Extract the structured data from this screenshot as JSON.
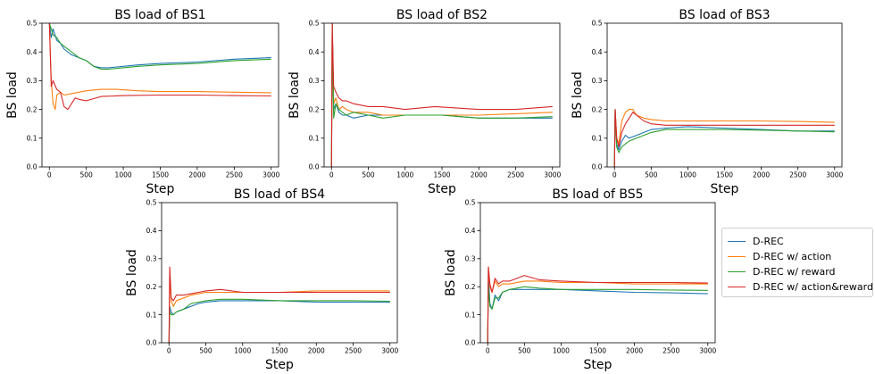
{
  "colors": {
    "D-REC": "#1f77b4",
    "D-REC w/ action": "#ff7f0e",
    "D-REC w/ reward": "#2ca02c",
    "D-REC w/ action&reward": "#d62728"
  },
  "legend": {
    "placement": "right",
    "items": [
      {
        "label": "D-REC",
        "color": "#1f77b4"
      },
      {
        "label": "D-REC w/ action",
        "color": "#ff7f0e"
      },
      {
        "label": "D-REC w/ reward",
        "color": "#2ca02c"
      },
      {
        "label": "D-REC w/ action&reward",
        "color": "#d62728"
      }
    ]
  },
  "chart_data": [
    {
      "type": "line",
      "title": "BS load of BS1",
      "xlabel": "Step",
      "ylabel": "BS load",
      "xlim": [
        -100,
        3100
      ],
      "ylim": [
        0,
        0.5
      ],
      "xticks": [
        0,
        500,
        1000,
        1500,
        2000,
        2500,
        3000
      ],
      "yticks": [
        0.0,
        0.1,
        0.2,
        0.3,
        0.4,
        0.5
      ],
      "grid": false,
      "series": [
        {
          "name": "D-REC",
          "x": [
            0,
            25,
            50,
            100,
            150,
            200,
            300,
            400,
            500,
            600,
            700,
            800,
            1000,
            1200,
            1500,
            2000,
            2500,
            3000
          ],
          "y": [
            0.5,
            0.45,
            0.48,
            0.44,
            0.43,
            0.41,
            0.39,
            0.38,
            0.37,
            0.35,
            0.345,
            0.345,
            0.35,
            0.355,
            0.36,
            0.365,
            0.375,
            0.38
          ]
        },
        {
          "name": "D-REC w/ action",
          "x": [
            0,
            25,
            50,
            80,
            100,
            150,
            200,
            300,
            400,
            500,
            700,
            900,
            1200,
            1500,
            2000,
            2500,
            3000
          ],
          "y": [
            0.5,
            0.3,
            0.22,
            0.2,
            0.25,
            0.26,
            0.25,
            0.255,
            0.26,
            0.265,
            0.27,
            0.27,
            0.265,
            0.262,
            0.262,
            0.26,
            0.258
          ]
        },
        {
          "name": "D-REC w/ reward",
          "x": [
            0,
            25,
            50,
            100,
            150,
            200,
            300,
            400,
            500,
            600,
            700,
            800,
            1000,
            1200,
            1500,
            2000,
            2500,
            3000
          ],
          "y": [
            0.5,
            0.48,
            0.46,
            0.45,
            0.43,
            0.42,
            0.4,
            0.38,
            0.37,
            0.35,
            0.34,
            0.34,
            0.345,
            0.35,
            0.355,
            0.36,
            0.37,
            0.375
          ]
        },
        {
          "name": "D-REC w/ action&reward",
          "x": [
            0,
            25,
            50,
            100,
            150,
            200,
            250,
            300,
            350,
            400,
            500,
            700,
            1000,
            1500,
            2000,
            2500,
            3000
          ],
          "y": [
            0.5,
            0.28,
            0.3,
            0.27,
            0.26,
            0.21,
            0.2,
            0.22,
            0.24,
            0.235,
            0.23,
            0.245,
            0.248,
            0.25,
            0.25,
            0.248,
            0.247
          ]
        }
      ]
    },
    {
      "type": "line",
      "title": "BS load of BS2",
      "xlabel": "Step",
      "ylabel": "BS load",
      "xlim": [
        -100,
        3100
      ],
      "ylim": [
        0,
        0.5
      ],
      "xticks": [
        0,
        500,
        1000,
        1500,
        2000,
        2500,
        3000
      ],
      "yticks": [
        0.0,
        0.1,
        0.2,
        0.3,
        0.4,
        0.5
      ],
      "grid": false,
      "series": [
        {
          "name": "D-REC",
          "x": [
            0,
            10,
            30,
            60,
            100,
            150,
            200,
            300,
            500,
            700,
            1000,
            1500,
            2000,
            2500,
            3000
          ],
          "y": [
            0,
            0.5,
            0.2,
            0.22,
            0.19,
            0.18,
            0.18,
            0.17,
            0.18,
            0.18,
            0.18,
            0.18,
            0.17,
            0.17,
            0.17
          ]
        },
        {
          "name": "D-REC w/ action",
          "x": [
            0,
            10,
            30,
            60,
            100,
            150,
            200,
            300,
            500,
            700,
            1000,
            1500,
            2000,
            2500,
            3000
          ],
          "y": [
            0,
            0.5,
            0.22,
            0.24,
            0.2,
            0.21,
            0.2,
            0.19,
            0.19,
            0.18,
            0.18,
            0.18,
            0.18,
            0.185,
            0.19
          ]
        },
        {
          "name": "D-REC w/ reward",
          "x": [
            0,
            10,
            30,
            60,
            100,
            150,
            200,
            300,
            500,
            700,
            1000,
            1500,
            2000,
            2500,
            3000
          ],
          "y": [
            0,
            0.5,
            0.17,
            0.22,
            0.2,
            0.19,
            0.18,
            0.19,
            0.18,
            0.17,
            0.18,
            0.18,
            0.17,
            0.17,
            0.175
          ]
        },
        {
          "name": "D-REC w/ action&reward",
          "x": [
            0,
            10,
            30,
            60,
            100,
            150,
            200,
            300,
            500,
            700,
            1000,
            1400,
            2000,
            2500,
            3000
          ],
          "y": [
            0,
            0.5,
            0.28,
            0.26,
            0.24,
            0.23,
            0.23,
            0.22,
            0.21,
            0.21,
            0.2,
            0.21,
            0.2,
            0.2,
            0.21
          ]
        }
      ]
    },
    {
      "type": "line",
      "title": "BS load of BS3",
      "xlabel": "Step",
      "ylabel": "BS load",
      "xlim": [
        -100,
        3100
      ],
      "ylim": [
        0,
        0.5
      ],
      "xticks": [
        0,
        500,
        1000,
        1500,
        2000,
        2500,
        3000
      ],
      "yticks": [
        0.0,
        0.1,
        0.2,
        0.3,
        0.4,
        0.5
      ],
      "grid": false,
      "series": [
        {
          "name": "D-REC",
          "x": [
            0,
            10,
            30,
            60,
            100,
            150,
            200,
            300,
            400,
            500,
            700,
            1000,
            1500,
            2000,
            2500,
            3000
          ],
          "y": [
            0,
            0.2,
            0.08,
            0.06,
            0.09,
            0.11,
            0.1,
            0.11,
            0.12,
            0.13,
            0.135,
            0.14,
            0.135,
            0.13,
            0.125,
            0.125
          ]
        },
        {
          "name": "D-REC w/ action",
          "x": [
            0,
            10,
            30,
            60,
            100,
            150,
            200,
            250,
            300,
            400,
            500,
            700,
            1000,
            1500,
            2000,
            2500,
            3000
          ],
          "y": [
            0,
            0.2,
            0.1,
            0.08,
            0.16,
            0.19,
            0.2,
            0.2,
            0.18,
            0.17,
            0.165,
            0.16,
            0.16,
            0.16,
            0.16,
            0.158,
            0.155
          ]
        },
        {
          "name": "D-REC w/ reward",
          "x": [
            0,
            10,
            30,
            60,
            100,
            150,
            200,
            300,
            400,
            500,
            700,
            1000,
            1500,
            2000,
            2500,
            3000
          ],
          "y": [
            0,
            0.2,
            0.07,
            0.05,
            0.07,
            0.08,
            0.09,
            0.1,
            0.11,
            0.12,
            0.13,
            0.13,
            0.13,
            0.128,
            0.125,
            0.122
          ]
        },
        {
          "name": "D-REC w/ action&reward",
          "x": [
            0,
            10,
            30,
            60,
            100,
            150,
            200,
            250,
            300,
            400,
            500,
            700,
            1000,
            1500,
            2000,
            2500,
            3000
          ],
          "y": [
            0,
            0.2,
            0.1,
            0.07,
            0.12,
            0.15,
            0.17,
            0.19,
            0.18,
            0.16,
            0.15,
            0.145,
            0.145,
            0.145,
            0.145,
            0.145,
            0.145
          ]
        }
      ]
    },
    {
      "type": "line",
      "title": "BS load of BS4",
      "xlabel": "Step",
      "ylabel": "BS load",
      "xlim": [
        -100,
        3100
      ],
      "ylim": [
        0,
        0.5
      ],
      "xticks": [
        0,
        500,
        1000,
        1500,
        2000,
        2500,
        3000
      ],
      "yticks": [
        0.0,
        0.1,
        0.2,
        0.3,
        0.4,
        0.5
      ],
      "grid": false,
      "series": [
        {
          "name": "D-REC",
          "x": [
            0,
            10,
            30,
            60,
            100,
            200,
            300,
            400,
            500,
            700,
            1000,
            1500,
            2000,
            2500,
            3000
          ],
          "y": [
            0,
            0.13,
            0.11,
            0.1,
            0.11,
            0.12,
            0.13,
            0.14,
            0.145,
            0.15,
            0.15,
            0.15,
            0.145,
            0.145,
            0.145
          ]
        },
        {
          "name": "D-REC w/ action",
          "x": [
            0,
            10,
            30,
            60,
            100,
            200,
            300,
            400,
            500,
            700,
            1000,
            1500,
            2000,
            2500,
            3000
          ],
          "y": [
            0,
            0.26,
            0.15,
            0.13,
            0.15,
            0.16,
            0.17,
            0.175,
            0.18,
            0.18,
            0.18,
            0.18,
            0.185,
            0.185,
            0.185
          ]
        },
        {
          "name": "D-REC w/ reward",
          "x": [
            0,
            10,
            30,
            60,
            100,
            200,
            300,
            400,
            500,
            700,
            1000,
            1500,
            2000,
            2500,
            3000
          ],
          "y": [
            0,
            0.11,
            0.1,
            0.1,
            0.11,
            0.12,
            0.14,
            0.145,
            0.15,
            0.155,
            0.155,
            0.15,
            0.15,
            0.15,
            0.148
          ]
        },
        {
          "name": "D-REC w/ action&reward",
          "x": [
            0,
            10,
            30,
            60,
            100,
            200,
            300,
            400,
            500,
            700,
            1000,
            1500,
            2000,
            2500,
            3000
          ],
          "y": [
            0,
            0.27,
            0.16,
            0.15,
            0.17,
            0.17,
            0.175,
            0.18,
            0.185,
            0.19,
            0.18,
            0.18,
            0.18,
            0.18,
            0.18
          ]
        }
      ]
    },
    {
      "type": "line",
      "title": "BS load of BS5",
      "xlabel": "Step",
      "ylabel": "BS load",
      "xlim": [
        -100,
        3100
      ],
      "ylim": [
        0,
        0.5
      ],
      "xticks": [
        0,
        500,
        1000,
        1500,
        2000,
        2500,
        3000
      ],
      "yticks": [
        0.0,
        0.1,
        0.2,
        0.3,
        0.4,
        0.5
      ],
      "grid": false,
      "series": [
        {
          "name": "D-REC",
          "x": [
            0,
            10,
            30,
            60,
            100,
            150,
            200,
            300,
            500,
            700,
            1000,
            1500,
            2000,
            2500,
            3000
          ],
          "y": [
            0,
            0.25,
            0.14,
            0.12,
            0.17,
            0.15,
            0.18,
            0.19,
            0.19,
            0.19,
            0.19,
            0.185,
            0.18,
            0.178,
            0.175
          ]
        },
        {
          "name": "D-REC w/ action",
          "x": [
            0,
            10,
            30,
            60,
            100,
            150,
            200,
            300,
            500,
            700,
            1000,
            1500,
            2000,
            2500,
            3000
          ],
          "y": [
            0,
            0.27,
            0.2,
            0.18,
            0.22,
            0.2,
            0.21,
            0.21,
            0.22,
            0.22,
            0.215,
            0.215,
            0.21,
            0.21,
            0.21
          ]
        },
        {
          "name": "D-REC w/ reward",
          "x": [
            0,
            10,
            30,
            60,
            100,
            150,
            200,
            300,
            500,
            700,
            1000,
            1500,
            2000,
            2500,
            3000
          ],
          "y": [
            0,
            0.2,
            0.13,
            0.12,
            0.16,
            0.16,
            0.18,
            0.19,
            0.2,
            0.195,
            0.19,
            0.19,
            0.19,
            0.188,
            0.187
          ]
        },
        {
          "name": "D-REC w/ action&reward",
          "x": [
            0,
            10,
            30,
            60,
            100,
            150,
            200,
            300,
            500,
            700,
            1000,
            1500,
            2000,
            2500,
            3000
          ],
          "y": [
            0,
            0.27,
            0.21,
            0.18,
            0.23,
            0.21,
            0.22,
            0.22,
            0.24,
            0.225,
            0.22,
            0.215,
            0.215,
            0.215,
            0.213
          ]
        }
      ]
    }
  ]
}
